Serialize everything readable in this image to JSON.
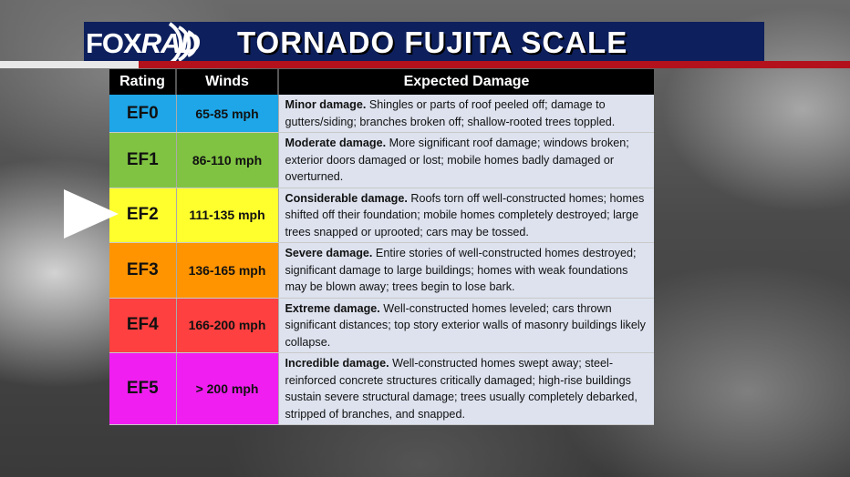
{
  "logo": {
    "brand": "FOX",
    "suffix": "RAD"
  },
  "title": "TORNADO FUJITA SCALE",
  "table": {
    "headers": [
      "Rating",
      "Winds",
      "Expected Damage"
    ],
    "rows": [
      {
        "rating": "EF0",
        "winds": "65-85 mph",
        "color": "#1ea6e8",
        "lead": "Minor damage.",
        "text": " Shingles or parts of roof peeled off; damage to gutters/siding; branches broken off; shallow-rooted trees toppled."
      },
      {
        "rating": "EF1",
        "winds": "86-110 mph",
        "color": "#80c342",
        "lead": "Moderate damage.",
        "text": " More significant roof damage; windows broken; exterior doors damaged or lost; mobile homes badly damaged or overturned."
      },
      {
        "rating": "EF2",
        "winds": "111-135 mph",
        "color": "#ffff2e",
        "lead": "Considerable damage.",
        "text": " Roofs torn off well-constructed homes; homes shifted off their foundation; mobile homes completely destroyed; large trees snapped or uprooted; cars may be tossed."
      },
      {
        "rating": "EF3",
        "winds": "136-165 mph",
        "color": "#ff9400",
        "lead": "Severe damage.",
        "text": " Entire stories of well-constructed homes destroyed; significant damage to large buildings; homes with weak foundations may be blown away; trees begin to lose bark."
      },
      {
        "rating": "EF4",
        "winds": "166-200 mph",
        "color": "#ff4040",
        "lead": "Extreme damage.",
        "text": " Well-constructed homes leveled; cars thrown significant distances; top story exterior walls of masonry buildings likely collapse."
      },
      {
        "rating": "EF5",
        "winds": "> 200 mph",
        "color": "#f01ef0",
        "lead": "Incredible damage.",
        "text": " Well-constructed homes swept away; steel-reinforced concrete structures critically damaged; high-rise buildings sustain severe structural damage; trees usually completely debarked, stripped of branches, and snapped."
      }
    ]
  },
  "highlighted_rating": "EF2"
}
